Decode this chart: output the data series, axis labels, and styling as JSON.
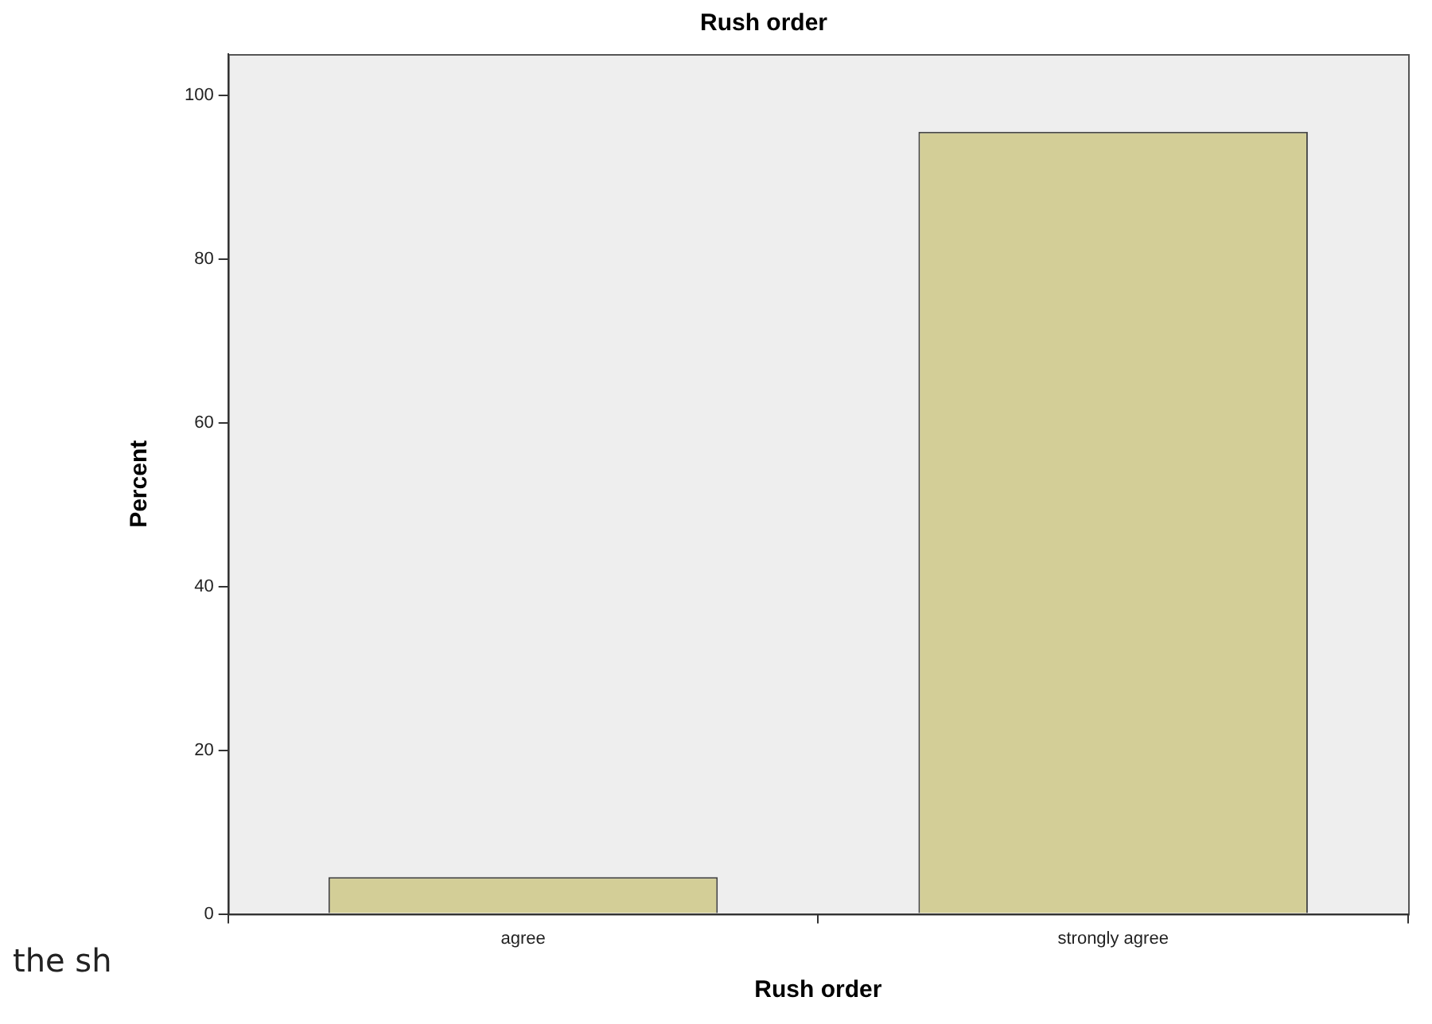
{
  "chart_data": {
    "type": "bar",
    "title": "Rush order",
    "xlabel": "Rush order",
    "ylabel": "Percent",
    "categories": [
      "agree",
      "strongly agree"
    ],
    "values": [
      4.5,
      95.5
    ],
    "color": "#d3ce97",
    "ylim": [
      0,
      105
    ],
    "yticks": [
      0,
      20,
      40,
      60,
      80,
      100
    ],
    "grid": false,
    "legend": false,
    "annotations": [
      "the sh"
    ]
  }
}
